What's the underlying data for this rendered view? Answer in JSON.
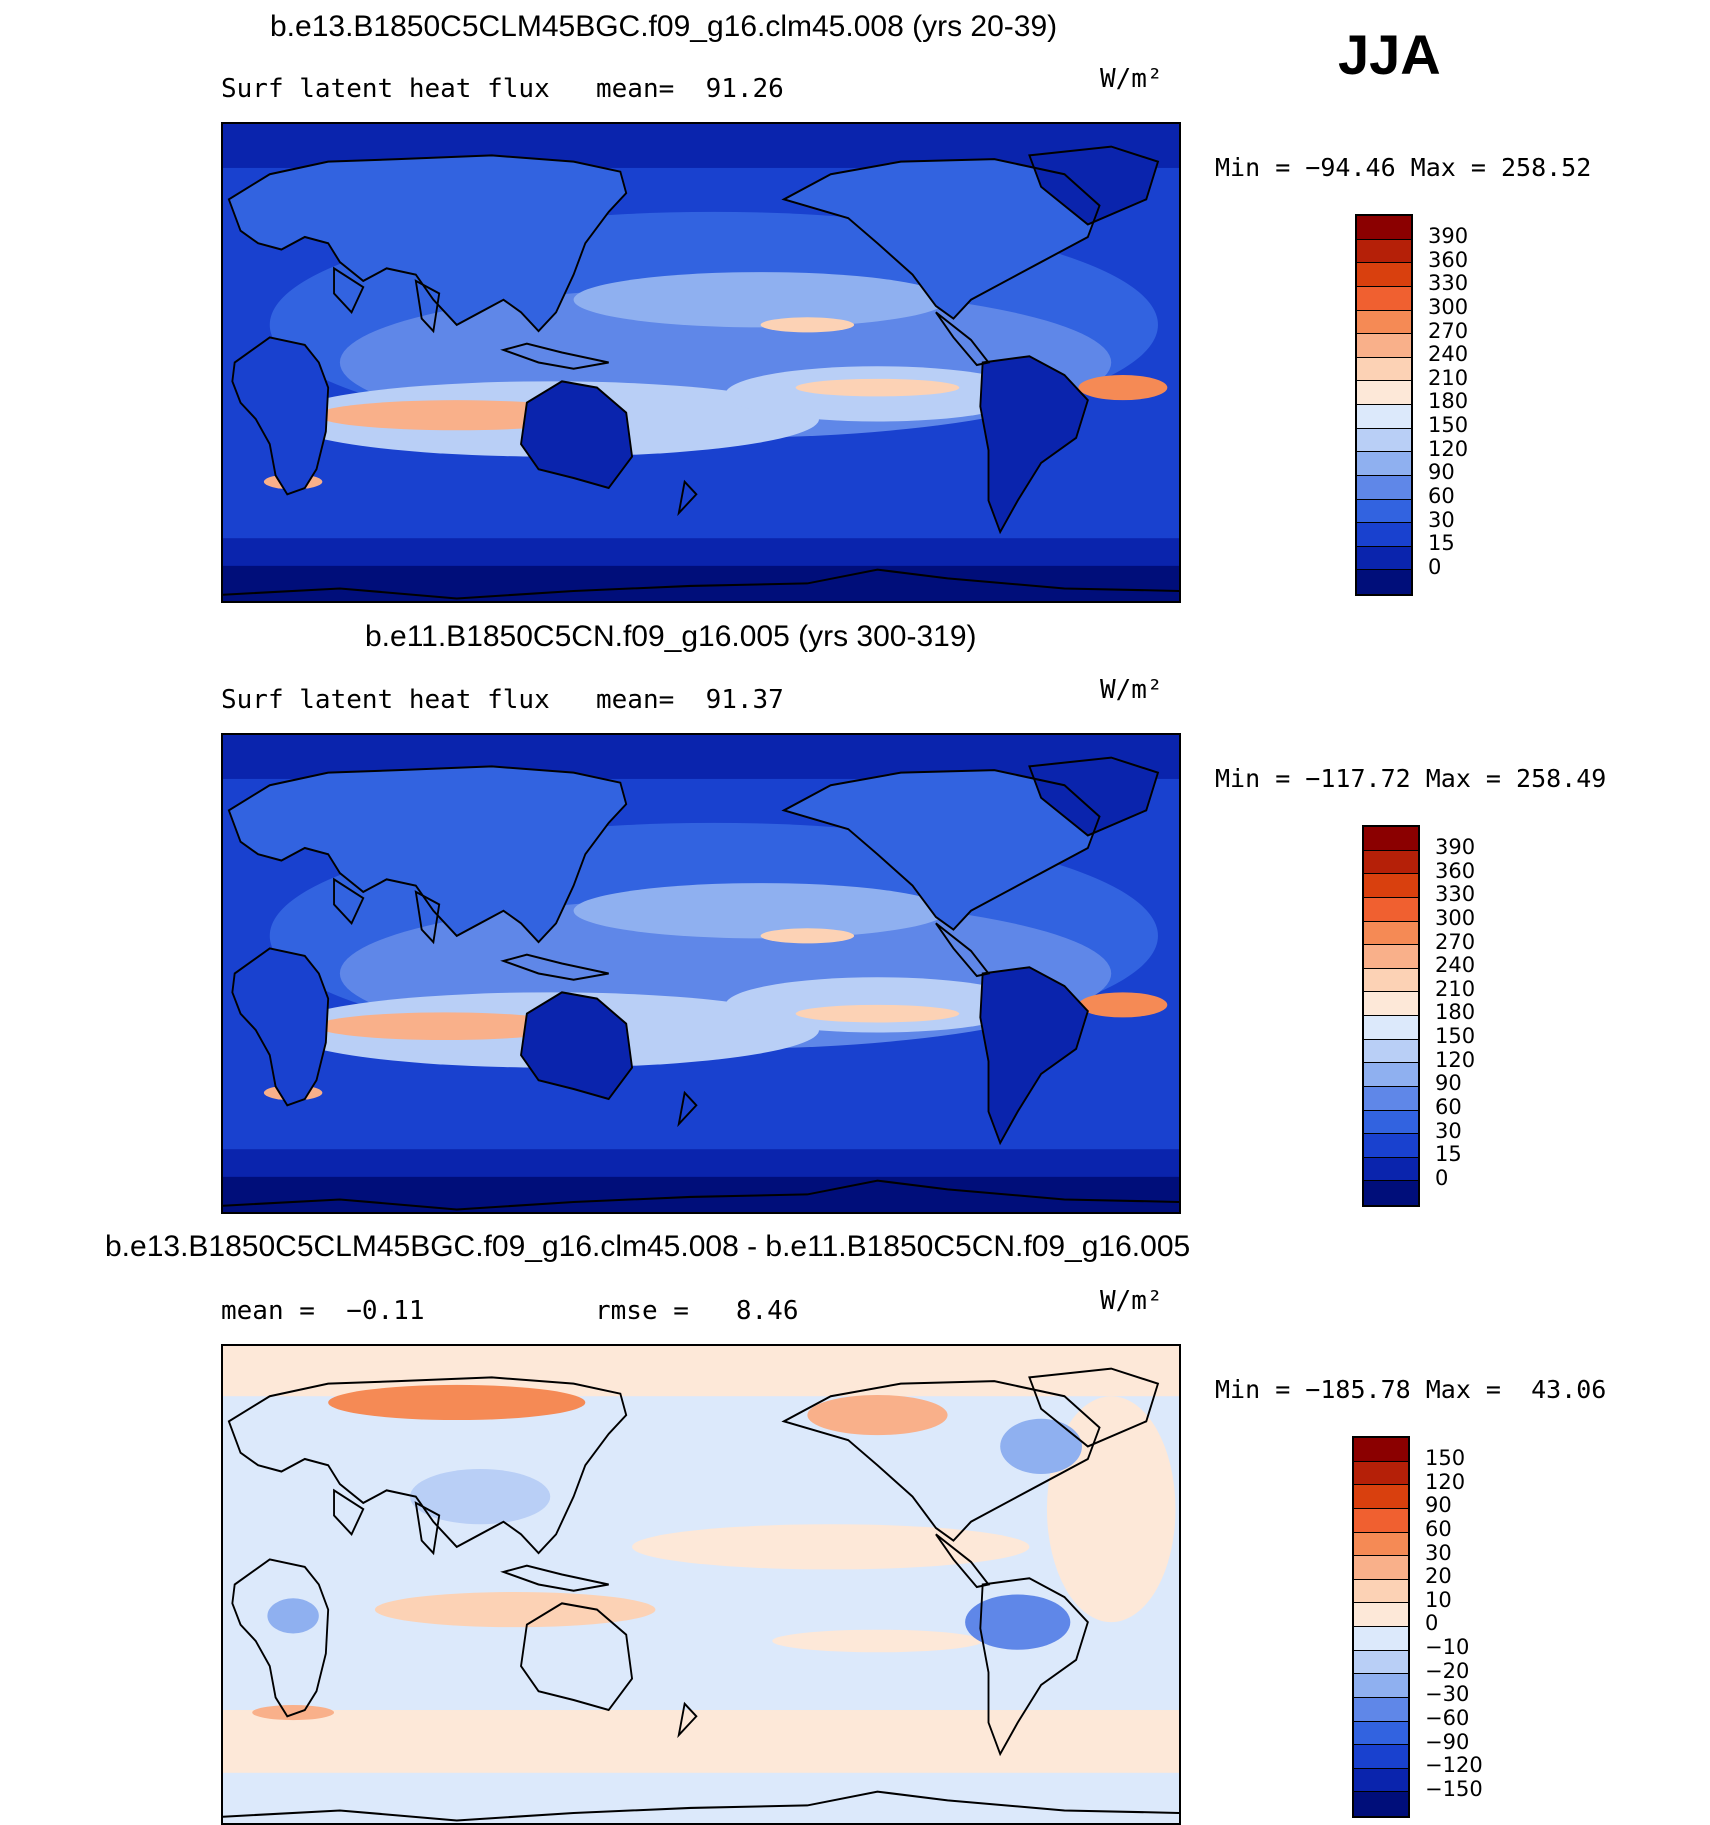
{
  "season": "JJA",
  "units": "W/m²",
  "panels": [
    {
      "id": "p1",
      "title": "b.e13.B1850C5CLM45BGC.f09_g16.clm45.008 (yrs 20-39)",
      "left_label": "Surf latent heat flux",
      "stat": "mean=  91.26",
      "units": "W/m²",
      "minmax": "Min = −94.46 Max = 258.52",
      "colorbar_labels": [
        "390",
        "360",
        "330",
        "300",
        "270",
        "240",
        "210",
        "180",
        "150",
        "120",
        "90",
        "60",
        "30",
        "15",
        "0"
      ],
      "colorbar_colors": [
        "#8b0000",
        "#b52008",
        "#d9400e",
        "#f06030",
        "#f58a55",
        "#f9b08a",
        "#fcd2b5",
        "#fde8d8",
        "#dce9fb",
        "#b9cff6",
        "#8fb0f0",
        "#5f87e8",
        "#3263e0",
        "#1941cf",
        "#0a24ad",
        "#000e7a"
      ]
    },
    {
      "id": "p2",
      "title": "b.e11.B1850C5CN.f09_g16.005 (yrs 300-319)",
      "left_label": "Surf latent heat flux",
      "stat": "mean=  91.37",
      "units": "W/m²",
      "minmax": "Min = −117.72 Max = 258.49",
      "colorbar_labels": [
        "390",
        "360",
        "330",
        "300",
        "270",
        "240",
        "210",
        "180",
        "150",
        "120",
        "90",
        "60",
        "30",
        "15",
        "0"
      ],
      "colorbar_colors": [
        "#8b0000",
        "#b52008",
        "#d9400e",
        "#f06030",
        "#f58a55",
        "#f9b08a",
        "#fcd2b5",
        "#fde8d8",
        "#dce9fb",
        "#b9cff6",
        "#8fb0f0",
        "#5f87e8",
        "#3263e0",
        "#1941cf",
        "#0a24ad",
        "#000e7a"
      ]
    },
    {
      "id": "p3",
      "title": "b.e13.B1850C5CLM45BGC.f09_g16.clm45.008 - b.e11.B1850C5CN.f09_g16.005",
      "left_label": "mean =  −0.11",
      "stat": "rmse =   8.46",
      "units": "W/m²",
      "minmax": "Min = −185.78 Max =  43.06",
      "colorbar_labels": [
        "150",
        "120",
        "90",
        "60",
        "30",
        "20",
        "10",
        "0",
        "−10",
        "−20",
        "−30",
        "−60",
        "−90",
        "−120",
        "−150"
      ],
      "colorbar_colors": [
        "#8b0000",
        "#b52008",
        "#d9400e",
        "#f06030",
        "#f58a55",
        "#f9b08a",
        "#fcd2b5",
        "#fde8d8",
        "#dce9fb",
        "#b9cff6",
        "#8fb0f0",
        "#5f87e8",
        "#3263e0",
        "#1941cf",
        "#0a24ad",
        "#000e7a"
      ]
    }
  ]
}
